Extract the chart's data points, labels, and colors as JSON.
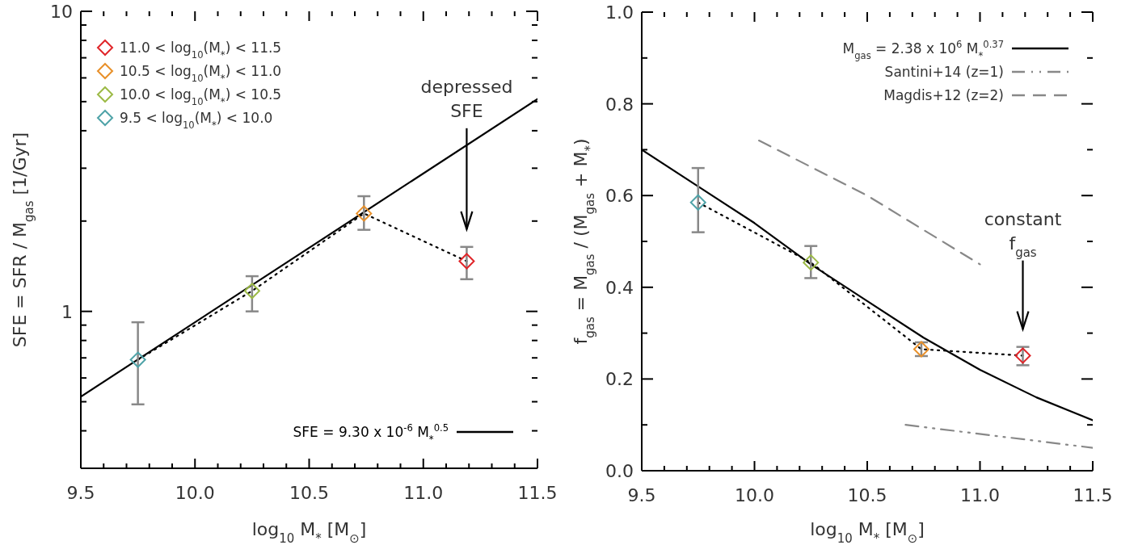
{
  "chart_data": [
    {
      "type": "scatter",
      "xlabel": "log$_{10}$ M$_{*}$ [M$_{⊙}$]",
      "ylabel": "SFE = SFR / M$_{gas}$ [1/Gyr]",
      "log": "y",
      "grid": false,
      "legend": "top left",
      "marker": "diamond",
      "xlim": [
        9.5,
        11.5
      ],
      "xticks": [
        9.5,
        {
          "value": 9.6,
          "label": null
        },
        {
          "value": 9.7,
          "label": null
        },
        {
          "value": 9.8,
          "label": null
        },
        {
          "value": 9.9,
          "label": null
        },
        {
          "value": 10,
          "label": "10.0"
        },
        {
          "value": 10.1,
          "label": null
        },
        {
          "value": 10.2,
          "label": null
        },
        {
          "value": 10.3,
          "label": null
        },
        {
          "value": 10.4,
          "label": null
        },
        10.5,
        {
          "value": 10.6,
          "label": null
        },
        {
          "value": 10.7,
          "label": null
        },
        {
          "value": 10.8,
          "label": null
        },
        {
          "value": 10.9,
          "label": null
        },
        {
          "value": 11,
          "label": "11.0"
        },
        {
          "value": 11.1,
          "label": null
        },
        {
          "value": 11.2,
          "label": null
        },
        {
          "value": 11.3,
          "label": null
        },
        {
          "value": 11.4,
          "label": null
        },
        11.5
      ],
      "ylim": [
        0.3,
        10
      ],
      "yticks": [
        {
          "value": 0.4,
          "label": null
        },
        {
          "value": 0.5,
          "label": null
        },
        {
          "value": 0.6,
          "label": null
        },
        {
          "value": 0.7,
          "label": null
        },
        {
          "value": 0.8,
          "label": null
        },
        {
          "value": 0.9,
          "label": null
        },
        1,
        {
          "value": 2,
          "label": null
        },
        {
          "value": 3,
          "label": null
        },
        {
          "value": 4,
          "label": null
        },
        {
          "value": 5,
          "label": null
        },
        {
          "value": 6,
          "label": null
        },
        {
          "value": 7,
          "label": null
        },
        {
          "value": 8,
          "label": null
        },
        {
          "value": 9,
          "label": null
        },
        10
      ],
      "series": [
        {
          "type": "line",
          "name": "SFE = 9.30 x 10$^{-6}$ M$_{*}$$^{0.5}$",
          "color": "#000000",
          "line_style": "solid",
          "marker": "none",
          "x": [
            9.5,
            11.5
          ],
          "values": [
            0.52,
            5.1
          ]
        },
        {
          "type": "line",
          "color": "#000000",
          "line_style": "dotted",
          "marker": "none",
          "x": [
            9.75,
            10.25,
            10.74,
            11.19
          ],
          "values": [
            0.69,
            1.17,
            2.12,
            1.47
          ]
        },
        {
          "name": "11.0 < log$_{10}$(M$_{*}$) < 11.5",
          "color": "#e0262a",
          "x": [
            11.19
          ],
          "values": [
            1.47
          ],
          "errors": [
            [
              1.28,
              1.64
            ]
          ]
        },
        {
          "name": "10.5 < log$_{10}$(M$_{*}$) < 11.0",
          "color": "#e8902a",
          "x": [
            10.74
          ],
          "values": [
            2.12
          ],
          "errors": [
            [
              1.87,
              2.42
            ]
          ]
        },
        {
          "name": "10.0 < log$_{10}$(M$_{*}$) < 10.5",
          "color": "#9cba46",
          "x": [
            10.25
          ],
          "values": [
            1.17
          ],
          "errors": [
            [
              1.0,
              1.31
            ]
          ]
        },
        {
          "name": "9.5 < log$_{10}$(M$_{*}$) < 10.0",
          "color": "#4fa3a8",
          "x": [
            9.75
          ],
          "values": [
            0.69
          ],
          "errors": [
            [
              0.49,
              0.92
            ]
          ]
        }
      ],
      "annotations": [
        "depressed SFE"
      ]
    },
    {
      "type": "scatter",
      "xlabel": "log$_{10}$ M$_{*}$ [M$_{⊙}$]",
      "ylabel": "f$_{gas}$ = M$_{gas}$ / (M$_{gas}$ + M$_{*}$)",
      "grid": false,
      "legend": "top right",
      "marker": "diamond",
      "xlim": [
        9.5,
        11.5
      ],
      "xticks": [
        9.5,
        {
          "value": 9.6,
          "label": null
        },
        {
          "value": 9.7,
          "label": null
        },
        {
          "value": 9.8,
          "label": null
        },
        {
          "value": 9.9,
          "label": null
        },
        {
          "value": 10,
          "label": "10.0"
        },
        {
          "value": 10.1,
          "label": null
        },
        {
          "value": 10.2,
          "label": null
        },
        {
          "value": 10.3,
          "label": null
        },
        {
          "value": 10.4,
          "label": null
        },
        10.5,
        {
          "value": 10.6,
          "label": null
        },
        {
          "value": 10.7,
          "label": null
        },
        {
          "value": 10.8,
          "label": null
        },
        {
          "value": 10.9,
          "label": null
        },
        {
          "value": 11,
          "label": "11.0"
        },
        {
          "value": 11.1,
          "label": null
        },
        {
          "value": 11.2,
          "label": null
        },
        {
          "value": 11.3,
          "label": null
        },
        {
          "value": 11.4,
          "label": null
        },
        11.5
      ],
      "ylim": [
        0,
        1
      ],
      "yticks": [
        {
          "value": 0,
          "label": "0.0"
        },
        {
          "value": 0.1,
          "label": null
        },
        0.2,
        {
          "value": 0.3,
          "label": null
        },
        0.4,
        {
          "value": 0.5,
          "label": null
        },
        0.6,
        {
          "value": 0.7,
          "label": null
        },
        0.8,
        {
          "value": 0.9,
          "label": null
        },
        {
          "value": 1,
          "label": "1.0"
        }
      ],
      "series": [
        {
          "type": "line",
          "name": "M$_{gas}$ = 2.38 x 10$^{6}$ M$_{*}$$^{0.37}$",
          "color": "#000000",
          "line_style": "solid",
          "marker": "none",
          "x": [
            9.5,
            9.75,
            10,
            10.25,
            10.5,
            10.75,
            11,
            11.25,
            11.5
          ],
          "values": [
            0.7,
            0.62,
            0.54,
            0.45,
            0.37,
            0.29,
            0.22,
            0.16,
            0.11
          ]
        },
        {
          "type": "line",
          "name": "Santini+14 (z=1)",
          "color": "#888888",
          "line_style": "dashdot",
          "marker": "none",
          "x": [
            10.67,
            11.5
          ],
          "values": [
            0.1,
            0.05
          ]
        },
        {
          "type": "line",
          "name": "Magdis+12 (z=2)",
          "color": "#888888",
          "line_style": "dashed",
          "marker": "none",
          "x": [
            10.02,
            10.5,
            11.0
          ],
          "values": [
            0.72,
            0.6,
            0.45
          ]
        },
        {
          "type": "line",
          "color": "#000000",
          "line_style": "dotted",
          "marker": "none",
          "x": [
            9.75,
            10.25,
            10.74,
            11.19
          ],
          "values": [
            0.585,
            0.454,
            0.265,
            0.251
          ]
        },
        {
          "color": "#4fa3a8",
          "x": [
            9.75
          ],
          "values": [
            0.585
          ],
          "errors": [
            [
              0.52,
              0.66
            ]
          ]
        },
        {
          "color": "#9cba46",
          "x": [
            10.25
          ],
          "values": [
            0.454
          ],
          "errors": [
            [
              0.42,
              0.49
            ]
          ]
        },
        {
          "color": "#e8902a",
          "x": [
            10.74
          ],
          "values": [
            0.265
          ],
          "errors": [
            [
              0.25,
              0.28
            ]
          ]
        },
        {
          "color": "#e0262a",
          "x": [
            11.19
          ],
          "values": [
            0.251
          ],
          "errors": [
            [
              0.23,
              0.27
            ]
          ]
        }
      ],
      "annotations": [
        "constant f$_{gas}$"
      ]
    }
  ]
}
